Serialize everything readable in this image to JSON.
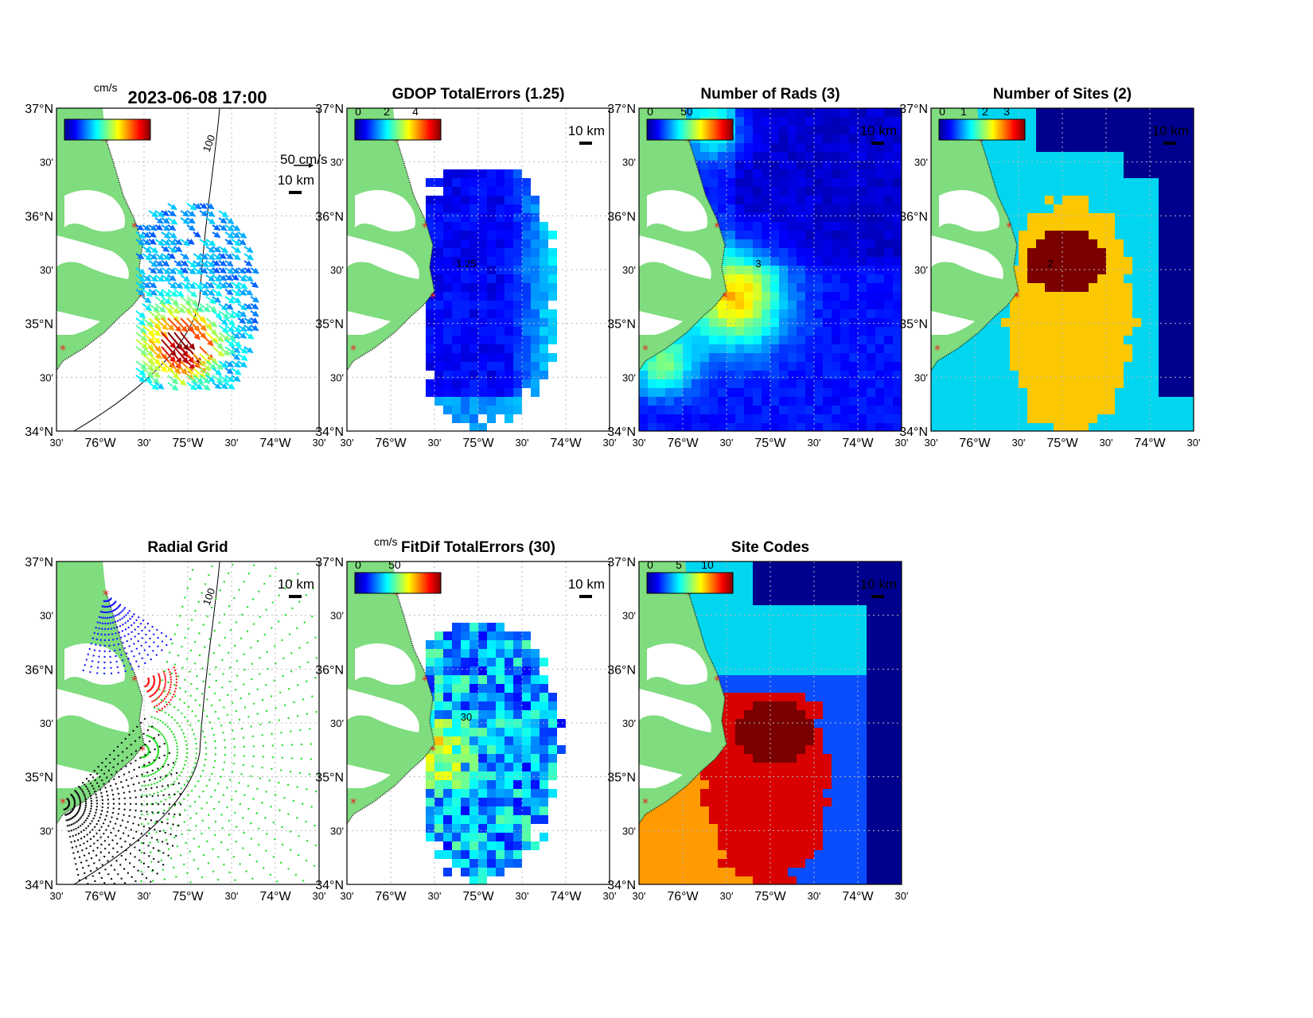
{
  "figure": {
    "timestamp": "2023-06-08 17:00",
    "unit_label": "cm/s",
    "vector_scale_label": "50 cm/s",
    "distance_scale_label": "10 km",
    "contour_label_isobath": "100"
  },
  "axes": {
    "lat_major": [
      "37°N",
      "36°N",
      "35°N",
      "34°N"
    ],
    "lat_minor": "30'",
    "lon_major": [
      "76°W",
      "75°W",
      "74°W"
    ],
    "lon_minor": "30'"
  },
  "panels": [
    {
      "id": "currents",
      "title": "",
      "colorbar_ticks": [],
      "colorbar_unit": "cm/s"
    },
    {
      "id": "gdop",
      "title": "GDOP TotalErrors (1.25)",
      "colorbar_ticks": [
        "0",
        "2",
        "4"
      ],
      "contour_label": "1.25"
    },
    {
      "id": "rads",
      "title": "Number of Rads (3)",
      "colorbar_ticks": [
        "0",
        "50"
      ],
      "contour_label": "3"
    },
    {
      "id": "sites",
      "title": "Number of Sites (2)",
      "colorbar_ticks": [
        "0",
        "1",
        "2",
        "3"
      ],
      "contour_label": "2"
    },
    {
      "id": "radialgrid",
      "title": "Radial Grid"
    },
    {
      "id": "fitdif",
      "title": "FitDif TotalErrors (30)",
      "colorbar_ticks": [
        "0",
        "50"
      ],
      "colorbar_unit": "cm/s",
      "contour_label": "30"
    },
    {
      "id": "sitecodes",
      "title": "Site Codes",
      "colorbar_ticks": [
        "0",
        "5",
        "10"
      ]
    }
  ],
  "colors": {
    "land": "#7fdc7f",
    "site_marker": "#e8261f",
    "radial_sites": [
      "#1a1aff",
      "#ff1a1a",
      "#22dd22",
      "#111111"
    ]
  }
}
